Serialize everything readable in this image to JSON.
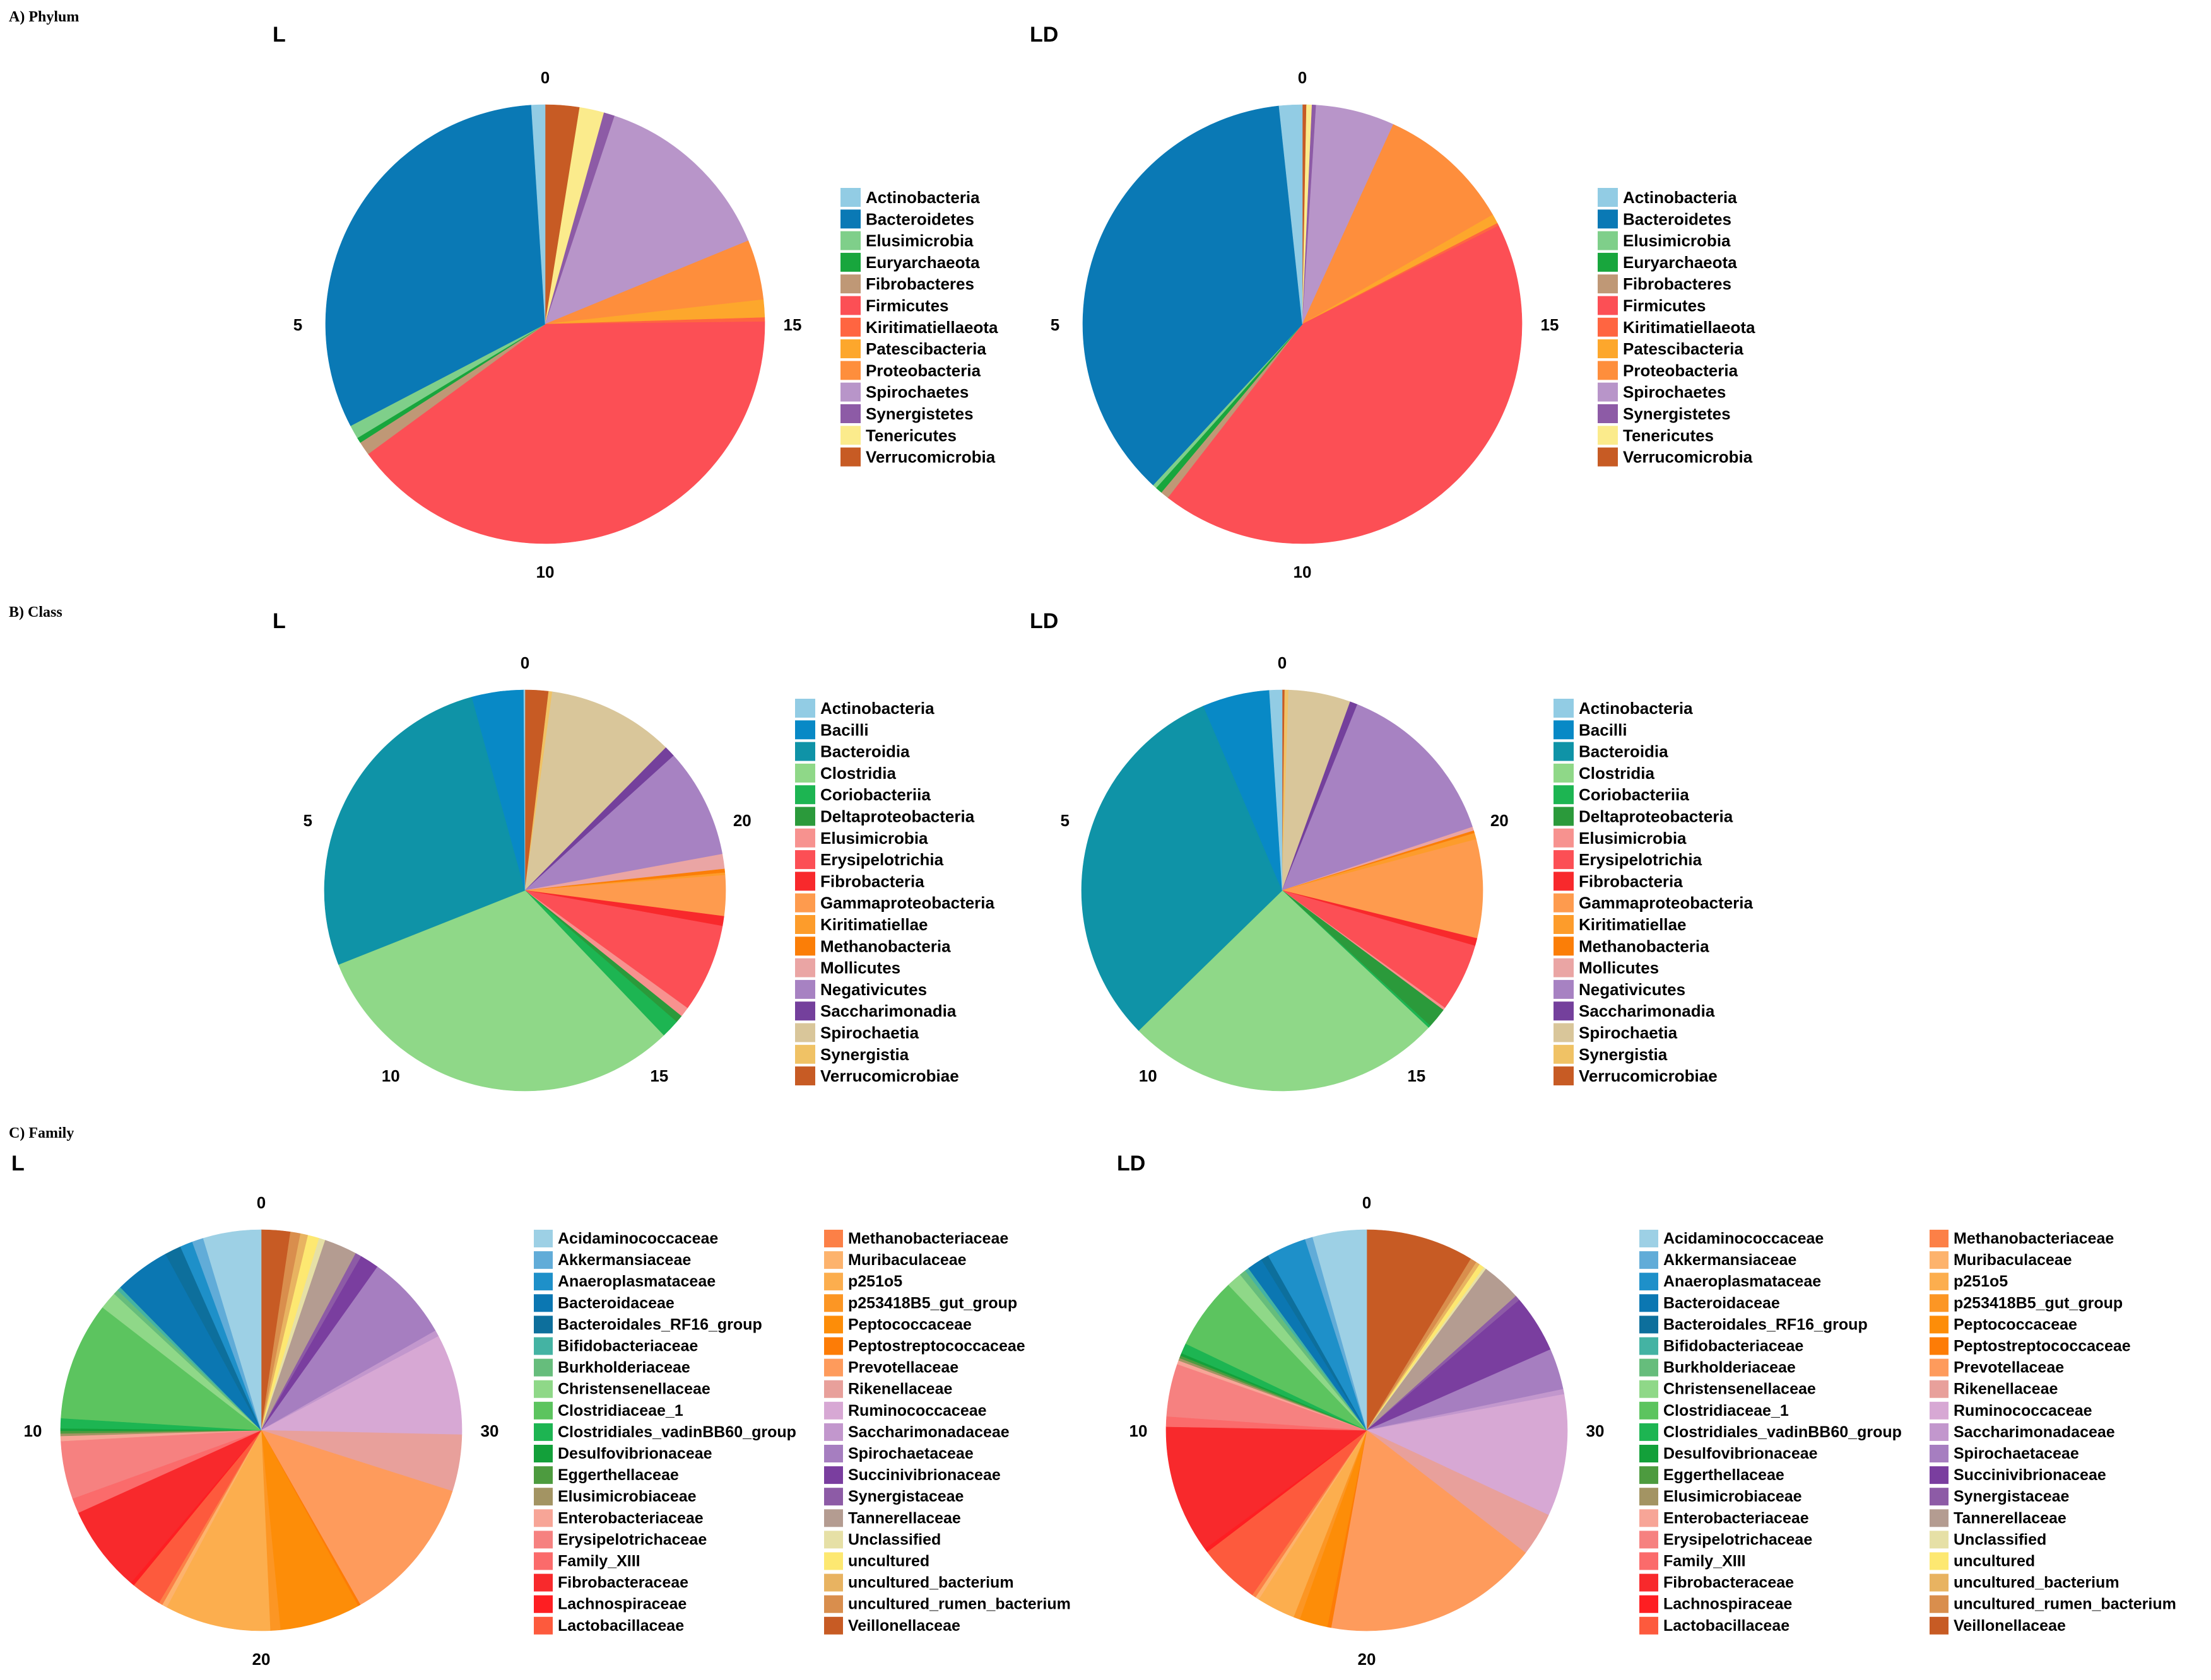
{
  "sections": [
    {
      "label": "A) Phylum"
    },
    {
      "label": "B) Class"
    },
    {
      "label": "C) Family"
    }
  ],
  "chart_data": [
    {
      "type": "pie",
      "title": "L",
      "section": "A) Phylum",
      "labels": [
        "Actinobacteria",
        "Bacteroidetes",
        "Elusimicrobia",
        "Euryarchaeota",
        "Fibrobacteres",
        "Firmicutes",
        "Kiritimatiellaeota",
        "Patescibacteria",
        "Proteobacteria",
        "Spirochaetes",
        "Synergistetes",
        "Tenericutes",
        "Verrucomicrobia"
      ],
      "colors": [
        "#92cce4",
        "#0a79b5",
        "#7fcf8a",
        "#18a63d",
        "#bf9876",
        "#fc4f55",
        "#ff6541",
        "#fda72c",
        "#fe8e3c",
        "#b895c9",
        "#8d5ba6",
        "#fbeb8c",
        "#c75b24"
      ],
      "order": [
        "Verrucomicrobia",
        "Tenericutes",
        "Synergistetes",
        "Spirochaetes",
        "Proteobacteria",
        "Patescibacteria",
        "Kiritimatiellaeota",
        "Firmicutes",
        "Fibrobacteres",
        "Euryarchaeota",
        "Elusimicrobia",
        "Bacteroidetes",
        "Actinobacteria"
      ],
      "values": [
        1.0,
        31.5,
        1.0,
        0.4,
        1.0,
        39.9,
        0.3,
        1.3,
        4.4,
        13.6,
        0.8,
        1.8,
        2.5
      ],
      "ticks": [
        "0",
        "5",
        "10",
        "15"
      ]
    },
    {
      "type": "pie",
      "title": "LD",
      "section": "A) Phylum",
      "labels": [
        "Actinobacteria",
        "Bacteroidetes",
        "Elusimicrobia",
        "Euryarchaeota",
        "Fibrobacteres",
        "Firmicutes",
        "Kiritimatiellaeota",
        "Patescibacteria",
        "Proteobacteria",
        "Spirochaetes",
        "Synergistetes",
        "Tenericutes",
        "Verrucomicrobia"
      ],
      "colors": [
        "#92cce4",
        "#0a79b5",
        "#7fcf8a",
        "#18a63d",
        "#bf9876",
        "#fc4f55",
        "#ff6541",
        "#fda72c",
        "#fe8e3c",
        "#b895c9",
        "#8d5ba6",
        "#fbeb8c",
        "#c75b24"
      ],
      "order": [
        "Verrucomicrobia",
        "Tenericutes",
        "Synergistetes",
        "Spirochaetes",
        "Proteobacteria",
        "Patescibacteria",
        "Kiritimatiellaeota",
        "Firmicutes",
        "Fibrobacteres",
        "Euryarchaeota",
        "Elusimicrobia",
        "Bacteroidetes",
        "Actinobacteria"
      ],
      "values": [
        1.7,
        36.4,
        0.3,
        0.5,
        0.6,
        42.9,
        0.2,
        0.7,
        9.9,
        5.8,
        0.3,
        0.4,
        0.3
      ],
      "ticks": [
        "0",
        "5",
        "10",
        "15"
      ]
    },
    {
      "type": "pie",
      "title": "L",
      "section": "B) Class",
      "labels": [
        "Actinobacteria",
        "Bacilli",
        "Bacteroidia",
        "Clostridia",
        "Coriobacteriia",
        "Deltaproteobacteria",
        "Elusimicrobia",
        "Erysipelotrichia",
        "Fibrobacteria",
        "Gammaproteobacteria",
        "Kiritimatiellae",
        "Methanobacteria",
        "Mollicutes",
        "Negativicutes",
        "Saccharimonadia",
        "Spirochaetia",
        "Synergistia",
        "Verrucomicrobiae"
      ],
      "colors": [
        "#92cce4",
        "#0889c6",
        "#0f93a7",
        "#8fd888",
        "#1db552",
        "#2b9a3b",
        "#f7928f",
        "#fc4f55",
        "#f8292c",
        "#fe9b4e",
        "#fd9c2b",
        "#fb7e07",
        "#eaa5a4",
        "#a782c2",
        "#74409c",
        "#d9c69a",
        "#f0c265",
        "#c75b24"
      ],
      "order": [
        "Verrucomicrobiae",
        "Synergistia",
        "Spirochaetia",
        "Saccharimonadia",
        "Negativicutes",
        "Mollicutes",
        "Methanobacteria",
        "Kiritimatiellae",
        "Gammaproteobacteria",
        "Fibrobacteria",
        "Erysipelotrichia",
        "Elusimicrobia",
        "Deltaproteobacteria",
        "Coriobacteriia",
        "Clostridia",
        "Bacteroidia",
        "Bacilli",
        "Actinobacteria"
      ],
      "values": [
        0.1,
        4.2,
        27.0,
        31.4,
        1.5,
        0.6,
        0.8,
        7.2,
        0.8,
        3.3,
        0.2,
        0.3,
        1.2,
        8.9,
        0.9,
        10.3,
        0.3,
        1.9
      ],
      "ticks": [
        "0",
        "5",
        "10",
        "15",
        "20"
      ]
    },
    {
      "type": "pie",
      "title": "LD",
      "section": "B) Class",
      "labels": [
        "Actinobacteria",
        "Bacilli",
        "Bacteroidia",
        "Clostridia",
        "Coriobacteriia",
        "Deltaproteobacteria",
        "Elusimicrobia",
        "Erysipelotrichia",
        "Fibrobacteria",
        "Gammaproteobacteria",
        "Kiritimatiellae",
        "Methanobacteria",
        "Mollicutes",
        "Negativicutes",
        "Saccharimonadia",
        "Spirochaetia",
        "Synergistia",
        "Verrucomicrobiae"
      ],
      "colors": [
        "#92cce4",
        "#0889c6",
        "#0f93a7",
        "#8fd888",
        "#1db552",
        "#2b9a3b",
        "#f7928f",
        "#fc4f55",
        "#f8292c",
        "#fe9b4e",
        "#fd9c2b",
        "#fb7e07",
        "#eaa5a4",
        "#a782c2",
        "#74409c",
        "#d9c69a",
        "#f0c265",
        "#c75b24"
      ],
      "order": [
        "Verrucomicrobiae",
        "Synergistia",
        "Spirochaetia",
        "Saccharimonadia",
        "Negativicutes",
        "Mollicutes",
        "Methanobacteria",
        "Kiritimatiellae",
        "Gammaproteobacteria",
        "Fibrobacteria",
        "Erysipelotrichia",
        "Elusimicrobia",
        "Deltaproteobacteria",
        "Coriobacteriia",
        "Clostridia",
        "Bacteroidia",
        "Bacilli",
        "Actinobacteria"
      ],
      "values": [
        1.0,
        5.3,
        30.3,
        25.2,
        0.2,
        1.6,
        0.2,
        5.4,
        0.6,
        7.8,
        0.5,
        0.2,
        0.3,
        13.5,
        0.6,
        4.9,
        0.3,
        0.2
      ],
      "ticks": [
        "0",
        "5",
        "10",
        "15",
        "20"
      ]
    },
    {
      "type": "pie",
      "title": "L",
      "section": "C) Family",
      "labels": [
        "Acidaminococcaceae",
        "Akkermansiaceae",
        "Anaeroplasmataceae",
        "Bacteroidaceae",
        "Bacteroidales_RF16_group",
        "Bifidobacteriaceae",
        "Burkholderiaceae",
        "Christensenellaceae",
        "Clostridiaceae_1",
        "Clostridiales_vadinBB60_group",
        "Desulfovibrionaceae",
        "Eggerthellaceae",
        "Elusimicrobiaceae",
        "Enterobacteriaceae",
        "Erysipelotrichaceae",
        "Family_XIII",
        "Fibrobacteraceae",
        "Lachnospiraceae",
        "Lactobacillaceae",
        "Methanobacteriaceae",
        "Muribaculaceae",
        "p251o5",
        "p253418B5_gut_group",
        "Peptococcaceae",
        "Peptostreptococcaceae",
        "Prevotellaceae",
        "Rikenellaceae",
        "Ruminococcaceae",
        "Saccharimonadaceae",
        "Spirochaetaceae",
        "Succinivibrionaceae",
        "Synergistaceae",
        "Tannerellaceae",
        "Unclassified",
        "uncultured",
        "uncultured_bacterium",
        "uncultured_rumen_bacterium",
        "Veillonellaceae"
      ],
      "colors": [
        "#9dd0e5",
        "#61acd8",
        "#1e90c9",
        "#0b77b2",
        "#0d6f9c",
        "#44b3a3",
        "#66bd7c",
        "#8fd888",
        "#5cc45f",
        "#1db552",
        "#13a03a",
        "#4d9b3f",
        "#a39463",
        "#f7a597",
        "#f68180",
        "#fb6b6b",
        "#f8292c",
        "#fe1e22",
        "#fd5a3d",
        "#fc8047",
        "#fdb36d",
        "#fcae4e",
        "#fc9624",
        "#fd8d08",
        "#fd7c06",
        "#fe9b5c",
        "#e8a09b",
        "#d7a8d4",
        "#c297cd",
        "#a67ec0",
        "#7a3e9f",
        "#8d5ba6",
        "#b49c91",
        "#e6e0a6",
        "#fde871",
        "#e8b361",
        "#d98e4d",
        "#c75b24"
      ],
      "order": [
        "Veillonellaceae",
        "uncultured_rumen_bacterium",
        "uncultured_bacterium",
        "uncultured",
        "Unclassified",
        "Tannerellaceae",
        "Synergistaceae",
        "Succinivibrionaceae",
        "Spirochaetaceae",
        "Saccharimonadaceae",
        "Ruminococcaceae",
        "Rikenellaceae",
        "Prevotellaceae",
        "Peptostreptococcaceae",
        "Peptococcaceae",
        "p253418B5_gut_group",
        "p251o5",
        "Muribaculaceae",
        "Methanobacteriaceae",
        "Lactobacillaceae",
        "Lachnospiraceae",
        "Fibrobacteraceae",
        "Family_XIII",
        "Erysipelotrichaceae",
        "Enterobacteriaceae",
        "Elusimicrobiaceae",
        "Eggerthellaceae",
        "Desulfovibrionaceae",
        "Clostridiales_vadinBB60_group",
        "Clostridiaceae_1",
        "Christensenellaceae",
        "Burkholderiaceae",
        "Bifidobacteriaceae",
        "Bacteroidaceae",
        "Bacteroidales_RF16_group",
        "Anaeroplasmataceae",
        "Akkermansiaceae",
        "Acidaminococcaceae"
      ],
      "values": [
        4.6,
        0.9,
        1.0,
        4.4,
        1.3,
        0.3,
        0.4,
        1.4,
        9.4,
        0.8,
        0.2,
        0.2,
        0.2,
        0.4,
        4.6,
        1.2,
        6.9,
        0.3,
        2.4,
        0.3,
        0.4,
        8.4,
        0.8,
        6.4,
        0.2,
        11.7,
        4.5,
        8.0,
        0.5,
        6.8,
        1.5,
        0.5,
        2.6,
        0.5,
        0.9,
        0.6,
        0.8,
        2.3
      ],
      "ticks": [
        "0",
        "10",
        "20",
        "30"
      ]
    },
    {
      "type": "pie",
      "title": "LD",
      "section": "C) Family",
      "labels": [
        "Acidaminococcaceae",
        "Akkermansiaceae",
        "Anaeroplasmataceae",
        "Bacteroidaceae",
        "Bacteroidales_RF16_group",
        "Bifidobacteriaceae",
        "Burkholderiaceae",
        "Christensenellaceae",
        "Clostridiaceae_1",
        "Clostridiales_vadinBB60_group",
        "Desulfovibrionaceae",
        "Eggerthellaceae",
        "Elusimicrobiaceae",
        "Enterobacteriaceae",
        "Erysipelotrichaceae",
        "Family_XIII",
        "Fibrobacteraceae",
        "Lachnospiraceae",
        "Lactobacillaceae",
        "Methanobacteriaceae",
        "Muribaculaceae",
        "p251o5",
        "p253418B5_gut_group",
        "Peptococcaceae",
        "Peptostreptococcaceae",
        "Prevotellaceae",
        "Rikenellaceae",
        "Ruminococcaceae",
        "Saccharimonadaceae",
        "Spirochaetaceae",
        "Succinivibrionaceae",
        "Synergistaceae",
        "Tannerellaceae",
        "Unclassified",
        "uncultured",
        "uncultured_bacterium",
        "uncultured_rumen_bacterium",
        "Veillonellaceae"
      ],
      "colors": [
        "#9dd0e5",
        "#61acd8",
        "#1e90c9",
        "#0b77b2",
        "#0d6f9c",
        "#44b3a3",
        "#66bd7c",
        "#8fd888",
        "#5cc45f",
        "#1db552",
        "#13a03a",
        "#4d9b3f",
        "#a39463",
        "#f7a597",
        "#f68180",
        "#fb6b6b",
        "#f8292c",
        "#fe1e22",
        "#fd5a3d",
        "#fc8047",
        "#fdb36d",
        "#fcae4e",
        "#fc9624",
        "#fd8d08",
        "#fd7c06",
        "#fe9b5c",
        "#e8a09b",
        "#d7a8d4",
        "#c297cd",
        "#a67ec0",
        "#7a3e9f",
        "#8d5ba6",
        "#b49c91",
        "#e6e0a6",
        "#fde871",
        "#e8b361",
        "#d98e4d",
        "#c75b24"
      ],
      "order": [
        "Veillonellaceae",
        "uncultured_rumen_bacterium",
        "uncultured_bacterium",
        "uncultured",
        "Unclassified",
        "Tannerellaceae",
        "Synergistaceae",
        "Succinivibrionaceae",
        "Spirochaetaceae",
        "Saccharimonadaceae",
        "Ruminococcaceae",
        "Rikenellaceae",
        "Prevotellaceae",
        "Peptostreptococcaceae",
        "Peptococcaceae",
        "p253418B5_gut_group",
        "p251o5",
        "Muribaculaceae",
        "Methanobacteriaceae",
        "Lactobacillaceae",
        "Lachnospiraceae",
        "Fibrobacteraceae",
        "Family_XIII",
        "Erysipelotrichaceae",
        "Enterobacteriaceae",
        "Elusimicrobiaceae",
        "Eggerthellaceae",
        "Desulfovibrionaceae",
        "Clostridiales_vadinBB60_group",
        "Clostridiaceae_1",
        "Christensenellaceae",
        "Burkholderiaceae",
        "Bifidobacteriaceae",
        "Bacteroidaceae",
        "Bacteroidales_RF16_group",
        "Anaeroplasmataceae",
        "Akkermansiaceae",
        "Acidaminococcaceae"
      ],
      "values": [
        4.2,
        0.6,
        3.1,
        1.2,
        0.6,
        0.3,
        0.5,
        1.2,
        5.6,
        0.8,
        0.2,
        0.2,
        0.2,
        0.3,
        4.1,
        0.8,
        10.0,
        0.3,
        4.8,
        0.3,
        0.3,
        3.0,
        0.5,
        2.2,
        0.3,
        16.8,
        3.4,
        9.5,
        0.4,
        3.2,
        4.5,
        0.4,
        3.1,
        0.2,
        0.4,
        0.3,
        0.5,
        8.4
      ],
      "ticks": [
        "0",
        "10",
        "20",
        "30"
      ]
    }
  ]
}
